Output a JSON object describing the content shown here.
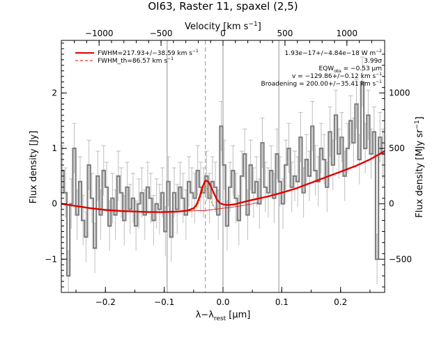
{
  "chart_data": {
    "type": "line",
    "title": "OI63, Raster 11, spaxel (2,5)",
    "xlabel": "λ−λ",
    "xlabel_sub": "rest",
    "xlabel_unit": " [μm]",
    "ylabel": "Flux density [Jy]",
    "top_axis_label": "Velocity [km s",
    "top_axis_sup": "−1",
    "top_axis_close": "]",
    "right_axis_label": "Flux density [MJy sr",
    "right_axis_sup": "−1",
    "right_axis_close": "]",
    "xlim": [
      -0.275,
      0.275
    ],
    "ylim": [
      -1.6,
      2.95
    ],
    "xticks": [
      -0.2,
      -0.1,
      0.0,
      0.1,
      0.2
    ],
    "xtick_labels": [
      "−0.2",
      "−0.1",
      "0.0",
      "0.1",
      "0.2"
    ],
    "yticks": [
      -1,
      0,
      1,
      2
    ],
    "ytick_labels": [
      "−1",
      "0",
      "1",
      "2"
    ],
    "top_ticks": [
      -1000,
      -500,
      0,
      500,
      1000
    ],
    "top_tick_labels": [
      "−1000",
      "−500",
      "0",
      "500",
      "1000"
    ],
    "right_ticks": [
      -500,
      0,
      500,
      1000
    ],
    "right_tick_labels": [
      "−500",
      "0",
      "500",
      "1000"
    ],
    "vlines_solid": [
      -0.095,
      0.0,
      0.095
    ],
    "vline_dashed": -0.03,
    "legend": [
      {
        "label": "FWHM=217.93+/−38.59 km s",
        "sup": "−1",
        "style": "solid",
        "color": "#e00000"
      },
      {
        "label": "FWHM_th=86.57 km s",
        "sup": "−1",
        "style": "dashed",
        "color": "#e00000"
      }
    ],
    "annotations": [
      {
        "text": "1.93e−17+/−4.84e−18 W m",
        "sup": "−2"
      },
      {
        "text": "3.99σ"
      },
      {
        "text": "EQW",
        "sub": "obs",
        "after": " = −0.53 μm"
      },
      {
        "text": "v = −129.86+/−0.12 km s",
        "sup": "−1"
      },
      {
        "text": "Broadening = 200.00+/−35.41 km s",
        "sup": "−1"
      }
    ],
    "series": [
      {
        "name": "FWHM=217.93+/−38.59 km s−1",
        "style": "model",
        "color": "#e00000",
        "x": [
          -0.275,
          -0.25,
          -0.225,
          -0.2,
          -0.175,
          -0.15,
          -0.125,
          -0.1,
          -0.075,
          -0.06,
          -0.05,
          -0.045,
          -0.04,
          -0.035,
          -0.03,
          -0.025,
          -0.02,
          -0.015,
          -0.01,
          -0.005,
          0.0,
          0.005,
          0.01,
          0.02,
          0.03,
          0.05,
          0.075,
          0.1,
          0.125,
          0.15,
          0.175,
          0.2,
          0.225,
          0.25,
          0.275
        ],
        "y": [
          0.0,
          -0.04,
          -0.08,
          -0.11,
          -0.13,
          -0.14,
          -0.15,
          -0.15,
          -0.14,
          -0.12,
          -0.08,
          -0.02,
          0.12,
          0.3,
          0.42,
          0.4,
          0.3,
          0.18,
          0.07,
          0.01,
          -0.01,
          -0.02,
          -0.02,
          -0.01,
          0.02,
          0.07,
          0.13,
          0.2,
          0.28,
          0.38,
          0.48,
          0.58,
          0.68,
          0.8,
          0.95
        ]
      },
      {
        "name": "FWHM_th=86.57 km s−1",
        "style": "dashed-component",
        "color": "#e08000",
        "x": [
          -0.05,
          -0.045,
          -0.04,
          -0.035,
          -0.03,
          -0.025,
          -0.02,
          -0.015,
          -0.01
        ],
        "y": [
          -0.11,
          -0.06,
          0.05,
          0.22,
          0.34,
          0.22,
          0.05,
          -0.06,
          -0.1
        ]
      },
      {
        "name": "continuum",
        "style": "thin-continuum",
        "color": "#e00000",
        "x": [
          -0.06,
          -0.03,
          0.0,
          0.03,
          0.06
        ],
        "y": [
          -0.13,
          -0.12,
          -0.08,
          -0.04,
          0.02
        ]
      },
      {
        "name": "data",
        "style": "histogram",
        "color": "#808080",
        "x": [
          -0.273,
          -0.268,
          -0.263,
          -0.258,
          -0.253,
          -0.248,
          -0.243,
          -0.238,
          -0.233,
          -0.228,
          -0.223,
          -0.218,
          -0.213,
          -0.208,
          -0.203,
          -0.198,
          -0.193,
          -0.188,
          -0.183,
          -0.178,
          -0.173,
          -0.168,
          -0.163,
          -0.158,
          -0.153,
          -0.148,
          -0.143,
          -0.138,
          -0.133,
          -0.128,
          -0.123,
          -0.118,
          -0.113,
          -0.108,
          -0.103,
          -0.098,
          -0.093,
          -0.088,
          -0.083,
          -0.078,
          -0.073,
          -0.068,
          -0.063,
          -0.058,
          -0.053,
          -0.048,
          -0.043,
          -0.038,
          -0.033,
          -0.028,
          -0.023,
          -0.018,
          -0.013,
          -0.008,
          -0.003,
          0.002,
          0.007,
          0.012,
          0.017,
          0.022,
          0.027,
          0.032,
          0.037,
          0.042,
          0.047,
          0.052,
          0.057,
          0.062,
          0.067,
          0.072,
          0.077,
          0.082,
          0.087,
          0.092,
          0.097,
          0.102,
          0.107,
          0.112,
          0.117,
          0.122,
          0.127,
          0.132,
          0.137,
          0.142,
          0.147,
          0.152,
          0.157,
          0.162,
          0.167,
          0.172,
          0.177,
          0.182,
          0.187,
          0.192,
          0.197,
          0.202,
          0.207,
          0.212,
          0.217,
          0.222,
          0.227,
          0.232,
          0.237,
          0.242,
          0.247,
          0.252,
          0.257,
          0.262,
          0.267,
          0.272
        ],
        "y": [
          0.6,
          0.2,
          -1.3,
          0.0,
          1.0,
          -0.2,
          0.4,
          -0.3,
          -0.6,
          0.7,
          0.1,
          -0.8,
          0.5,
          -0.2,
          0.6,
          0.3,
          -0.4,
          0.1,
          -0.2,
          0.5,
          0.2,
          -0.3,
          0.3,
          -0.1,
          0.1,
          -0.4,
          0.0,
          0.2,
          -0.2,
          0.3,
          0.1,
          -0.3,
          0.0,
          -0.1,
          0.2,
          -0.5,
          0.4,
          -0.6,
          0.2,
          -0.1,
          0.3,
          0.1,
          -0.2,
          0.4,
          0.2,
          0.1,
          0.6,
          0.3,
          0.2,
          0.5,
          0.1,
          0.4,
          0.3,
          -0.2,
          1.4,
          0.7,
          -0.4,
          0.3,
          0.6,
          0.1,
          -0.3,
          0.5,
          0.9,
          -0.2,
          0.7,
          0.2,
          0.4,
          0.0,
          1.1,
          0.3,
          0.2,
          0.6,
          0.1,
          0.9,
          0.4,
          0.0,
          0.7,
          1.0,
          0.3,
          0.5,
          0.4,
          1.2,
          0.2,
          0.8,
          0.5,
          1.4,
          0.6,
          0.4,
          1.0,
          0.8,
          0.3,
          1.3,
          0.7,
          1.6,
          0.9,
          1.2,
          0.5,
          1.0,
          1.5,
          1.1,
          1.8,
          0.8,
          2.2,
          1.0,
          1.6,
          0.9,
          1.3,
          -1.0,
          1.2,
          0.9
        ],
        "err": 0.45
      }
    ]
  }
}
